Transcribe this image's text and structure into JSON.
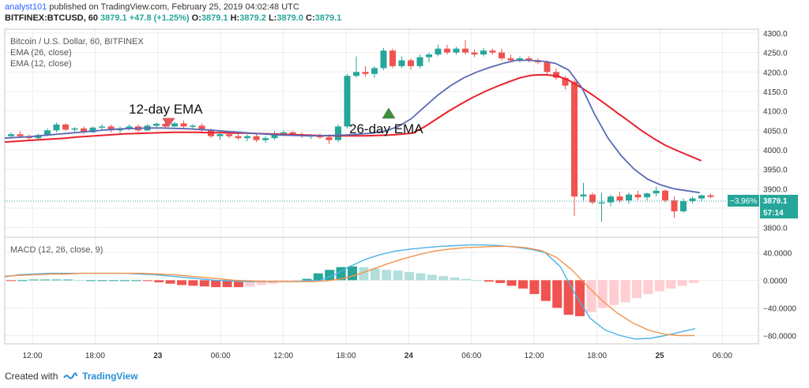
{
  "header": {
    "author": "analyst101",
    "published_text": "published on TradingView.com, February 25, 2019 04:02:48 UTC",
    "symbol": "BITFINEX:BTCUSD, 60",
    "open_label": "O:",
    "open": "3879.1",
    "high_label": "H:",
    "high": "3879.2",
    "low_label": "L:",
    "low": "3879.0",
    "close_label": "C:",
    "close": "3879.1",
    "change": "+47.8 (+1.25%)"
  },
  "legend": {
    "title": "Bitcoin / U.S. Dollar, 60, BITFINEX",
    "ema26": "EMA (26, close)",
    "ema12": "EMA (12, close)",
    "macd": "MACD (12, 26, close, 9)"
  },
  "annotations": {
    "ema12_text": "12-day EMA",
    "ema26_text": "26-day EMA"
  },
  "price_tags": {
    "change_pct": "−3.96%",
    "last_price": "3879.1",
    "countdown": "57:14"
  },
  "footer": {
    "created_with": "Created with",
    "brand": "TradingView"
  },
  "colors": {
    "up": "#26a69a",
    "down": "#ef5350",
    "ema12": "#5b6bb4",
    "ema26": "#e8212b",
    "macd_line": "#4ab3e8",
    "signal_line": "#f5924c",
    "hist_up_strong": "#26a69a",
    "hist_up_weak": "#b2dfdb",
    "hist_down_strong": "#ef5350",
    "hist_down_weak": "#ffcdd2",
    "grid": "#ededed"
  },
  "chart_data": {
    "type": "candlestick",
    "timeframe": "60",
    "x_tick_labels": [
      "12:00",
      "18:00",
      "23",
      "06:00",
      "12:00",
      "18:00",
      "24",
      "06:00",
      "12:00",
      "18:00",
      "25",
      "06:00"
    ],
    "price_axis": {
      "ylim": [
        3775,
        4310
      ],
      "ticks": [
        3800,
        3850,
        3900,
        3950,
        4000,
        4050,
        4100,
        4150,
        4200,
        4250,
        4300
      ],
      "tick_labels": [
        "3800.0",
        "3850.0",
        "3900.0",
        "3950.0",
        "4000.0",
        "4050.0",
        "4100.0",
        "4150.0",
        "4200.0",
        "4250.0",
        "4300.0"
      ]
    },
    "macd_axis": {
      "ylim": [
        -92,
        62
      ],
      "ticks": [
        40,
        0,
        -40,
        -80
      ],
      "tick_labels": [
        "40.0000",
        "0.0000",
        "−40.0000",
        "−80.0000"
      ]
    },
    "candles": [
      [
        4035,
        4045,
        4030,
        4040
      ],
      [
        4040,
        4048,
        4030,
        4035
      ],
      [
        4035,
        4040,
        4025,
        4030
      ],
      [
        4030,
        4042,
        4027,
        4038
      ],
      [
        4038,
        4055,
        4035,
        4050
      ],
      [
        4050,
        4070,
        4045,
        4065
      ],
      [
        4065,
        4068,
        4048,
        4052
      ],
      [
        4052,
        4058,
        4045,
        4055
      ],
      [
        4055,
        4060,
        4040,
        4045
      ],
      [
        4045,
        4060,
        4043,
        4057
      ],
      [
        4057,
        4065,
        4050,
        4060
      ],
      [
        4060,
        4065,
        4045,
        4050
      ],
      [
        4050,
        4060,
        4042,
        4055
      ],
      [
        4055,
        4065,
        4050,
        4060
      ],
      [
        4060,
        4065,
        4045,
        4050
      ],
      [
        4050,
        4066,
        4048,
        4062
      ],
      [
        4062,
        4070,
        4058,
        4067
      ],
      [
        4067,
        4070,
        4055,
        4060
      ],
      [
        4060,
        4072,
        4058,
        4068
      ],
      [
        4068,
        4075,
        4055,
        4060
      ],
      [
        4060,
        4066,
        4052,
        4062
      ],
      [
        4062,
        4068,
        4045,
        4050
      ],
      [
        4050,
        4055,
        4030,
        4035
      ],
      [
        4035,
        4045,
        4025,
        4040
      ],
      [
        4040,
        4048,
        4030,
        4035
      ],
      [
        4035,
        4042,
        4025,
        4030
      ],
      [
        4030,
        4040,
        4022,
        4035
      ],
      [
        4035,
        4040,
        4020,
        4025
      ],
      [
        4025,
        4035,
        4018,
        4030
      ],
      [
        4030,
        4048,
        4025,
        4042
      ],
      [
        4042,
        4050,
        4035,
        4045
      ],
      [
        4045,
        4048,
        4035,
        4040
      ],
      [
        4040,
        4045,
        4030,
        4035
      ],
      [
        4035,
        4040,
        4028,
        4037
      ],
      [
        4037,
        4042,
        4028,
        4032
      ],
      [
        4032,
        4040,
        4015,
        4025
      ],
      [
        4025,
        4065,
        4020,
        4060
      ],
      [
        4060,
        4195,
        4055,
        4190
      ],
      [
        4190,
        4240,
        4185,
        4200
      ],
      [
        4200,
        4215,
        4188,
        4195
      ],
      [
        4195,
        4215,
        4185,
        4210
      ],
      [
        4210,
        4262,
        4205,
        4255
      ],
      [
        4255,
        4260,
        4210,
        4215
      ],
      [
        4215,
        4240,
        4210,
        4230
      ],
      [
        4230,
        4235,
        4205,
        4215
      ],
      [
        4215,
        4245,
        4210,
        4238
      ],
      [
        4238,
        4250,
        4225,
        4245
      ],
      [
        4245,
        4270,
        4240,
        4260
      ],
      [
        4260,
        4270,
        4245,
        4250
      ],
      [
        4250,
        4265,
        4245,
        4260
      ],
      [
        4260,
        4282,
        4245,
        4250
      ],
      [
        4250,
        4258,
        4238,
        4245
      ],
      [
        4245,
        4262,
        4240,
        4255
      ],
      [
        4255,
        4260,
        4245,
        4250
      ],
      [
        4250,
        4260,
        4230,
        4235
      ],
      [
        4235,
        4245,
        4225,
        4230
      ],
      [
        4230,
        4240,
        4225,
        4235
      ],
      [
        4235,
        4240,
        4225,
        4230
      ],
      [
        4230,
        4235,
        4220,
        4225
      ],
      [
        4225,
        4230,
        4195,
        4200
      ],
      [
        4200,
        4210,
        4180,
        4185
      ],
      [
        4185,
        4190,
        4155,
        4165
      ],
      [
        4175,
        4180,
        3830,
        3880
      ],
      [
        3880,
        3915,
        3870,
        3885
      ],
      [
        3885,
        3890,
        3860,
        3865
      ],
      [
        3865,
        3890,
        3815,
        3865
      ],
      [
        3865,
        3885,
        3855,
        3880
      ],
      [
        3880,
        3892,
        3865,
        3870
      ],
      [
        3870,
        3890,
        3862,
        3885
      ],
      [
        3885,
        3895,
        3870,
        3878
      ],
      [
        3878,
        3890,
        3870,
        3888
      ],
      [
        3888,
        3905,
        3880,
        3895
      ],
      [
        3895,
        3898,
        3865,
        3870
      ],
      [
        3870,
        3880,
        3825,
        3842
      ],
      [
        3842,
        3875,
        3838,
        3868
      ],
      [
        3868,
        3880,
        3862,
        3875
      ],
      [
        3875,
        3885,
        3868,
        3883
      ],
      [
        3883,
        3888,
        3875,
        3879
      ]
    ],
    "ema26": [
      4020,
      4022,
      4024,
      4026,
      4028,
      4030,
      4033,
      4035,
      4037,
      4039,
      4041,
      4042,
      4043,
      4044,
      4045,
      4045,
      4045,
      4044,
      4044,
      4043,
      4043,
      4042,
      4041,
      4040,
      4039,
      4038,
      4037,
      4036,
      4036,
      4036,
      4036,
      4037,
      4038,
      4040,
      4043,
      4060,
      4080,
      4100,
      4118,
      4135,
      4150,
      4163,
      4175,
      4186,
      4192,
      4193,
      4190,
      4178,
      4160,
      4140,
      4118,
      4095,
      4073,
      4050,
      4030,
      4012,
      3998,
      3985,
      3972
    ],
    "ema12": [
      4030,
      4032,
      4034,
      4037,
      4040,
      4043,
      4046,
      4049,
      4052,
      4054,
      4055,
      4056,
      4056,
      4055,
      4054,
      4052,
      4050,
      4047,
      4045,
      4042,
      4040,
      4038,
      4037,
      4036,
      4036,
      4037,
      4038,
      4040,
      4043,
      4048,
      4060,
      4080,
      4110,
      4140,
      4165,
      4185,
      4200,
      4212,
      4222,
      4230,
      4230,
      4228,
      4222,
      4205,
      4160,
      4090,
      4030,
      3985,
      3950,
      3925,
      3910,
      3900,
      3895,
      3890
    ],
    "macd": [
      5,
      8,
      9,
      10,
      10,
      10,
      10,
      10,
      10,
      9,
      8,
      6,
      4,
      2,
      0,
      -1,
      -2,
      -2,
      -2,
      -2,
      -1,
      0,
      8,
      20,
      30,
      37,
      42,
      45,
      47,
      49,
      50,
      51,
      51,
      50,
      48,
      45,
      40,
      20,
      -20,
      -55,
      -72,
      -80,
      -85,
      -84,
      -80,
      -75,
      -70
    ],
    "signal": [
      6,
      7,
      8,
      9,
      9,
      10,
      10,
      10,
      10,
      10,
      9,
      8,
      6,
      4,
      2,
      0,
      -1,
      -2,
      -2,
      -2,
      -2,
      -1,
      2,
      8,
      16,
      24,
      31,
      37,
      42,
      45,
      47,
      48,
      49,
      49,
      47,
      43,
      33,
      15,
      -8,
      -30,
      -48,
      -62,
      -72,
      -78,
      -80,
      -80
    ],
    "histogram": [
      -1,
      0,
      1,
      1,
      1,
      1,
      0,
      0,
      0,
      0,
      0,
      0,
      -1,
      -3,
      -5,
      -7,
      -8,
      -9,
      -10,
      -10,
      -10,
      -9,
      -7,
      -5,
      -3,
      -1,
      2,
      10,
      15,
      19,
      20,
      19,
      17,
      15,
      14,
      12,
      10,
      8,
      6,
      4,
      2,
      0,
      -2,
      -4,
      -8,
      -12,
      -20,
      -30,
      -40,
      -50,
      -52,
      -46,
      -40,
      -36,
      -32,
      -26,
      -20,
      -16,
      -12,
      -8,
      -4
    ]
  }
}
